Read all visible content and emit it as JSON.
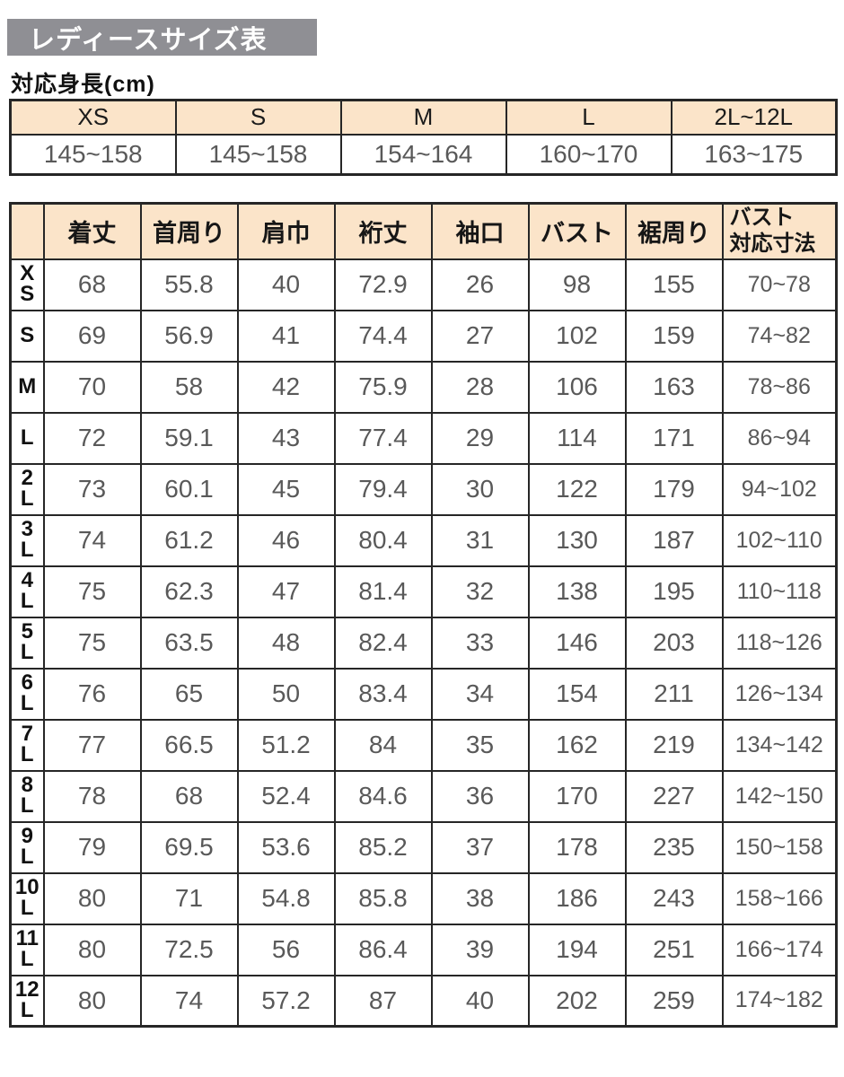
{
  "page": {
    "title": "レディースサイズ表",
    "subtitle": "対応身長(cm)"
  },
  "colors": {
    "title_bar_bg": "#8f8f94",
    "title_text": "#ffffff",
    "table_header_bg": "#fbe4c9",
    "table_border": "#262626",
    "value_text": "#595959",
    "label_text": "#111111"
  },
  "height_table": {
    "headers": [
      "XS",
      "S",
      "M",
      "L",
      "2L~12L"
    ],
    "values": [
      "145~158",
      "145~158",
      "154~164",
      "160~170",
      "163~175"
    ]
  },
  "size_table": {
    "corner": "",
    "columns": [
      "着丈",
      "首周り",
      "肩巾",
      "裄丈",
      "袖口",
      "バスト",
      "裾周り",
      "バスト\n対応寸法"
    ],
    "rows": [
      {
        "size": "XS",
        "label": "X\nS",
        "values": [
          "68",
          "55.8",
          "40",
          "72.9",
          "26",
          "98",
          "155",
          "70~78"
        ]
      },
      {
        "size": "S",
        "label": "S",
        "values": [
          "69",
          "56.9",
          "41",
          "74.4",
          "27",
          "102",
          "159",
          "74~82"
        ]
      },
      {
        "size": "M",
        "label": "M",
        "values": [
          "70",
          "58",
          "42",
          "75.9",
          "28",
          "106",
          "163",
          "78~86"
        ]
      },
      {
        "size": "L",
        "label": "L",
        "values": [
          "72",
          "59.1",
          "43",
          "77.4",
          "29",
          "114",
          "171",
          "86~94"
        ]
      },
      {
        "size": "2L",
        "label": "2\nL",
        "values": [
          "73",
          "60.1",
          "45",
          "79.4",
          "30",
          "122",
          "179",
          "94~102"
        ]
      },
      {
        "size": "3L",
        "label": "3\nL",
        "values": [
          "74",
          "61.2",
          "46",
          "80.4",
          "31",
          "130",
          "187",
          "102~110"
        ]
      },
      {
        "size": "4L",
        "label": "4\nL",
        "values": [
          "75",
          "62.3",
          "47",
          "81.4",
          "32",
          "138",
          "195",
          "110~118"
        ]
      },
      {
        "size": "5L",
        "label": "5\nL",
        "values": [
          "75",
          "63.5",
          "48",
          "82.4",
          "33",
          "146",
          "203",
          "118~126"
        ]
      },
      {
        "size": "6L",
        "label": "6\nL",
        "values": [
          "76",
          "65",
          "50",
          "83.4",
          "34",
          "154",
          "211",
          "126~134"
        ]
      },
      {
        "size": "7L",
        "label": "7\nL",
        "values": [
          "77",
          "66.5",
          "51.2",
          "84",
          "35",
          "162",
          "219",
          "134~142"
        ]
      },
      {
        "size": "8L",
        "label": "8\nL",
        "values": [
          "78",
          "68",
          "52.4",
          "84.6",
          "36",
          "170",
          "227",
          "142~150"
        ]
      },
      {
        "size": "9L",
        "label": "9\nL",
        "values": [
          "79",
          "69.5",
          "53.6",
          "85.2",
          "37",
          "178",
          "235",
          "150~158"
        ]
      },
      {
        "size": "10L",
        "label": "10\nL",
        "values": [
          "80",
          "71",
          "54.8",
          "85.8",
          "38",
          "186",
          "243",
          "158~166"
        ]
      },
      {
        "size": "11L",
        "label": "11\nL",
        "values": [
          "80",
          "72.5",
          "56",
          "86.4",
          "39",
          "194",
          "251",
          "166~174"
        ]
      },
      {
        "size": "12L",
        "label": "12\nL",
        "values": [
          "80",
          "74",
          "57.2",
          "87",
          "40",
          "202",
          "259",
          "174~182"
        ]
      }
    ]
  }
}
